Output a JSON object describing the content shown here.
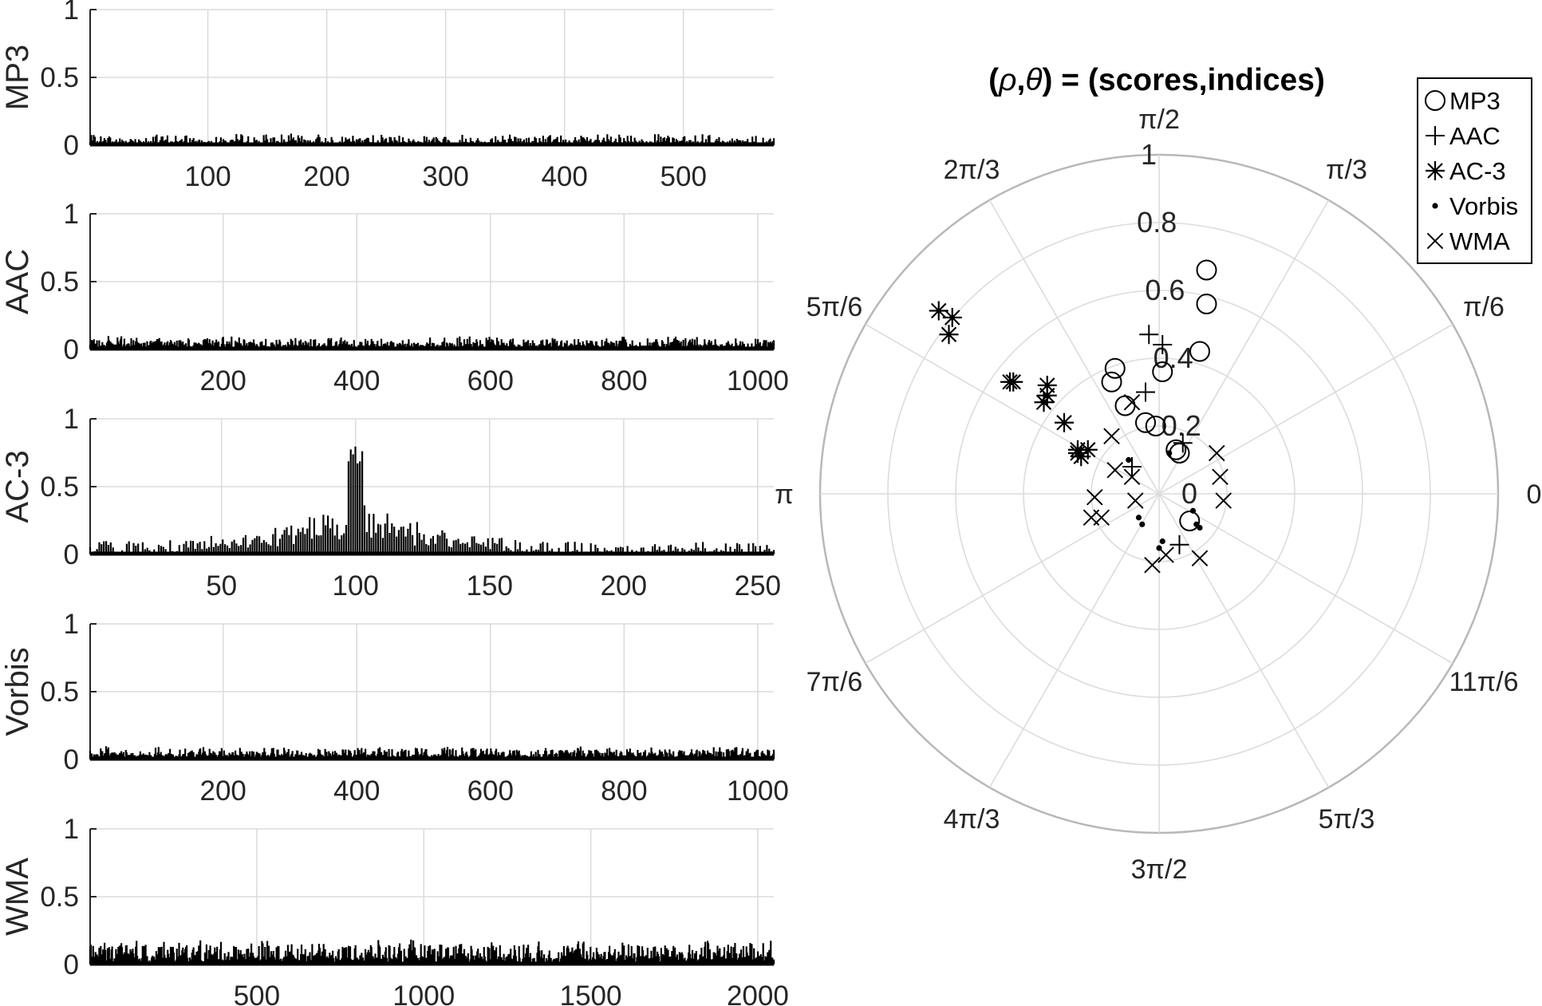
{
  "chart_data": [
    {
      "type": "line",
      "ylabel": "MP3",
      "xticks": [
        100,
        200,
        300,
        400,
        500
      ],
      "xlim": [
        1,
        576
      ],
      "ylim": [
        0,
        1
      ],
      "yticks": [
        "0",
        "0.5",
        "1"
      ],
      "noise_base": 0.03,
      "noise_amp": 0.06,
      "peak": null
    },
    {
      "type": "line",
      "ylabel": "AAC",
      "xticks": [
        200,
        400,
        600,
        800,
        1000
      ],
      "xlim": [
        1,
        1024
      ],
      "ylim": [
        0,
        1
      ],
      "yticks": [
        "0",
        "0.5",
        "1"
      ],
      "noise_base": 0.03,
      "noise_amp": 0.07,
      "peak": null
    },
    {
      "type": "line",
      "ylabel": "AC-3",
      "xticks": [
        50,
        100,
        150,
        200,
        250
      ],
      "xlim": [
        1,
        256
      ],
      "ylim": [
        0,
        1
      ],
      "yticks": [
        "0",
        "0.5",
        "1"
      ],
      "noise_base": 0.03,
      "noise_amp": 0.08,
      "peak": {
        "center": 100,
        "value": 0.81,
        "width": 28
      }
    },
    {
      "type": "line",
      "ylabel": "Vorbis",
      "xticks": [
        200,
        400,
        600,
        800,
        1000
      ],
      "xlim": [
        1,
        1024
      ],
      "ylim": [
        0,
        1
      ],
      "yticks": [
        "0",
        "0.5",
        "1"
      ],
      "noise_base": 0.03,
      "noise_amp": 0.07,
      "peak": null
    },
    {
      "type": "line",
      "ylabel": "WMA",
      "xticks": [
        500,
        1000,
        1500,
        2000
      ],
      "xlim": [
        1,
        2048
      ],
      "ylim": [
        0,
        1
      ],
      "yticks": [
        "0",
        "0.5",
        "1"
      ],
      "noise_base": 0.05,
      "noise_amp": 0.14,
      "peak": null
    },
    {
      "type": "scatter",
      "polar": true,
      "title_parts": [
        "(",
        "ρ",
        ",",
        "θ",
        ") = (scores,indices)"
      ],
      "rlim": [
        0,
        1
      ],
      "rticks": [
        "0",
        "0.2",
        "0.4",
        "0.6",
        "0.8",
        "1"
      ],
      "angle_labels": [
        "0",
        "π/6",
        "π/3",
        "π/2",
        "2π/3",
        "5π/6",
        "π",
        "7π/6",
        "4π/3",
        "3π/2",
        "5π/3",
        "11π/6"
      ],
      "legend_position": "top-right",
      "series": [
        {
          "name": "MP3",
          "marker": "circle",
          "points": [
            [
              0.05,
              0.13
            ],
            [
              0.01,
              0.36
            ],
            [
              0.12,
              0.42
            ],
            [
              0.14,
              0.56
            ],
            [
              0.14,
              0.66
            ],
            [
              -0.13,
              0.37
            ],
            [
              -0.14,
              0.33
            ],
            [
              -0.1,
              0.26
            ],
            [
              -0.04,
              0.21
            ],
            [
              -0.01,
              0.2
            ],
            [
              0.06,
              0.12
            ],
            [
              0.09,
              -0.08
            ]
          ]
        },
        {
          "name": "AAC",
          "marker": "plus",
          "points": [
            [
              0.07,
              0.15
            ],
            [
              0.01,
              0.44
            ],
            [
              -0.03,
              0.47
            ],
            [
              -0.04,
              0.3
            ],
            [
              -0.08,
              0.08
            ],
            [
              0.06,
              -0.15
            ]
          ]
        },
        {
          "name": "AC-3",
          "marker": "star",
          "points": [
            [
              -0.65,
              0.54
            ],
            [
              -0.61,
              0.52
            ],
            [
              -0.62,
              0.47
            ],
            [
              -0.44,
              0.33
            ],
            [
              -0.43,
              0.33
            ],
            [
              -0.33,
              0.32
            ],
            [
              -0.33,
              0.29
            ],
            [
              -0.34,
              0.27
            ],
            [
              -0.28,
              0.21
            ],
            [
              -0.24,
              0.12
            ],
            [
              -0.24,
              0.13
            ],
            [
              -0.23,
              0.11
            ],
            [
              -0.21,
              0.13
            ]
          ]
        },
        {
          "name": "Vorbis",
          "marker": "dot",
          "points": [
            [
              -0.09,
              0.1
            ],
            [
              -0.05,
              -0.09
            ],
            [
              -0.06,
              -0.07
            ],
            [
              0.0,
              -0.16
            ],
            [
              0.03,
              0.12
            ],
            [
              0.1,
              -0.05
            ],
            [
              0.11,
              -0.09
            ],
            [
              0.12,
              -0.1
            ],
            [
              0.01,
              -0.14
            ]
          ]
        },
        {
          "name": "WMA",
          "marker": "x",
          "points": [
            [
              -0.08,
              0.27
            ],
            [
              -0.14,
              0.17
            ],
            [
              -0.13,
              0.07
            ],
            [
              -0.08,
              0.05
            ],
            [
              -0.07,
              -0.02
            ],
            [
              -0.19,
              -0.01
            ],
            [
              -0.2,
              -0.07
            ],
            [
              -0.17,
              -0.07
            ],
            [
              0.17,
              0.12
            ],
            [
              0.18,
              0.05
            ],
            [
              0.19,
              -0.02
            ],
            [
              0.02,
              -0.18
            ],
            [
              -0.02,
              -0.21
            ],
            [
              0.12,
              -0.19
            ]
          ]
        }
      ]
    }
  ]
}
